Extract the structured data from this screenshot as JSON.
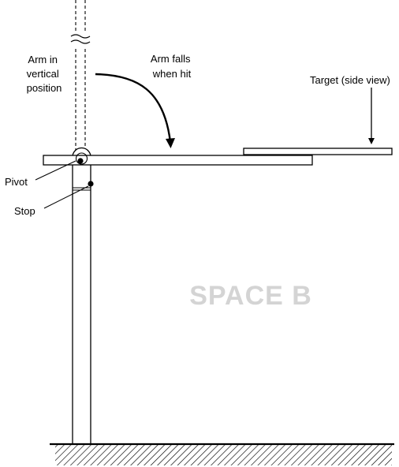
{
  "labels": {
    "arm_vertical": [
      "Arm in",
      "vertical",
      "position"
    ],
    "arm_falls": [
      "Arm falls",
      "when hit"
    ],
    "target": "Target (side view)",
    "pivot": "Pivot",
    "stop": "Stop"
  },
  "watermark": "SPACE B",
  "colors": {
    "line": "#000000",
    "watermark": "#d4d4d4",
    "background": "#ffffff"
  }
}
